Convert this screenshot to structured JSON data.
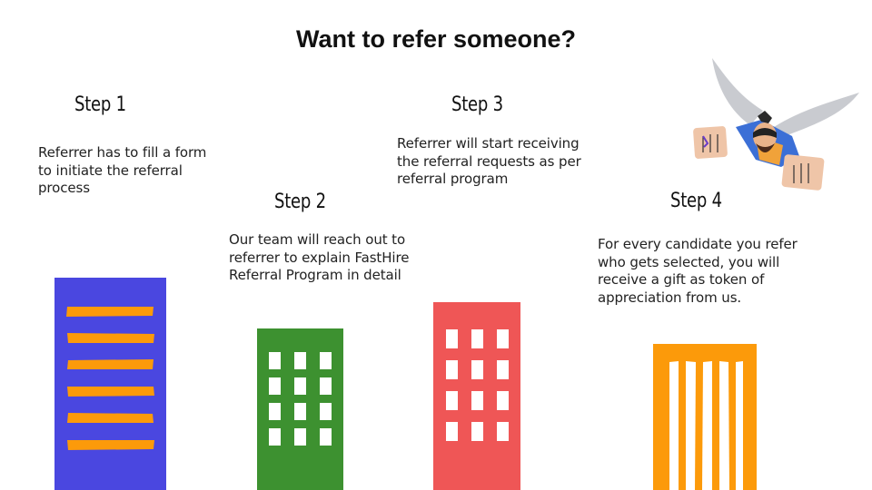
{
  "title": "Want to refer someone?",
  "steps": [
    {
      "heading": "Step 1",
      "text": "Referrer has to fill a form\nto initiate the referral\nprocess"
    },
    {
      "heading": "Step 2",
      "text": "Our team will reach out to\nreferrer to explain FastHire\nReferral Program in detail"
    },
    {
      "heading": "Step 3",
      "text": "Referrer will start receiving\nthe referral requests  as per\nreferral program"
    },
    {
      "heading": "Step 4",
      "text": "For every candidate you refer\nwho gets selected, you will\nreceive a gift as token of\nappreciation from us."
    }
  ],
  "colors": {
    "building_blue": "#4a47e0",
    "building_green": "#3d9130",
    "building_red": "#ef5656",
    "building_orange": "#fc9a0a",
    "stripe": "#fc9a0a",
    "window": "#ffffff"
  },
  "illustration": {
    "icon": "flying-superhero-icon"
  }
}
